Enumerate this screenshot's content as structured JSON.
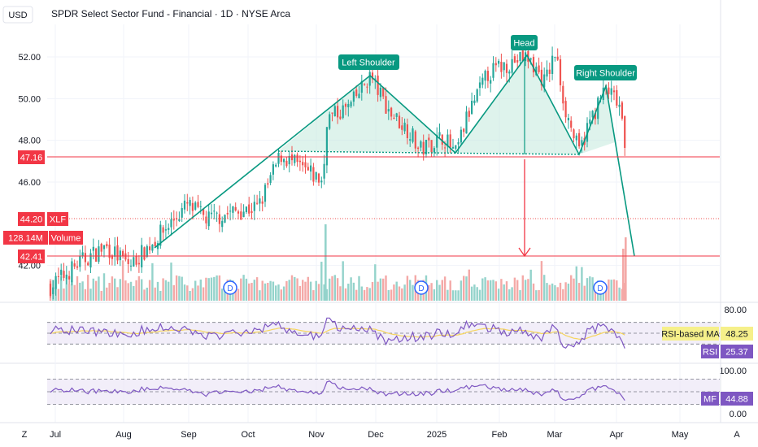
{
  "header": {
    "currency": "USD",
    "title": "SPDR Select Sector Fund - Financial · 1D · NYSE Arca"
  },
  "colors": {
    "up": "#26a69a",
    "down": "#ef5350",
    "pattern": "#089981",
    "pattern_fill": "#c8ebe0",
    "line_red": "#f23645",
    "rsi_line": "#7e57c2",
    "rsi_ma": "#f6d55c",
    "band_fill": "#ede7f6",
    "grid": "#f0f3fa",
    "text": "#131722"
  },
  "chart_data": [
    {
      "type": "candlestick",
      "ylim": [
        40,
        54
      ],
      "price_ticks": [
        "52.00",
        "50.00",
        "48.00",
        "46.00",
        "42.00"
      ],
      "time_labels": [
        "Jul",
        "Aug",
        "Sep",
        "Oct",
        "Nov",
        "Dec",
        "2025",
        "Feb",
        "Mar",
        "Apr",
        "May"
      ],
      "labels": {
        "last_price": "44.20",
        "symbol": "XLF",
        "volume": "128.14M",
        "volume_label": "Volume",
        "neckline": "47.16",
        "target": "42.41"
      },
      "pattern_labels": {
        "left": "Left Shoulder",
        "head": "Head",
        "right": "Right Shoulder"
      },
      "dividend_marker": "D",
      "neckline_price": 47.16,
      "target_price": 42.41
    },
    {
      "type": "line",
      "name": "RSI",
      "ylim": [
        0,
        100
      ],
      "ticks": [
        "80.00"
      ],
      "bands": [
        70,
        30
      ],
      "labels": {
        "ma_name": "RSI-based MA",
        "ma_value": "48.25",
        "rsi_name": "RSI",
        "rsi_value": "25.37"
      }
    },
    {
      "type": "line",
      "name": "MF",
      "ylim": [
        0,
        100
      ],
      "ticks": [
        "100.00",
        "0.00"
      ],
      "bands": [
        80,
        20
      ],
      "labels": {
        "mf_name": "MF",
        "mf_value": "44.88"
      }
    }
  ],
  "footer": {
    "left_button": "Z",
    "right_button": "A"
  }
}
